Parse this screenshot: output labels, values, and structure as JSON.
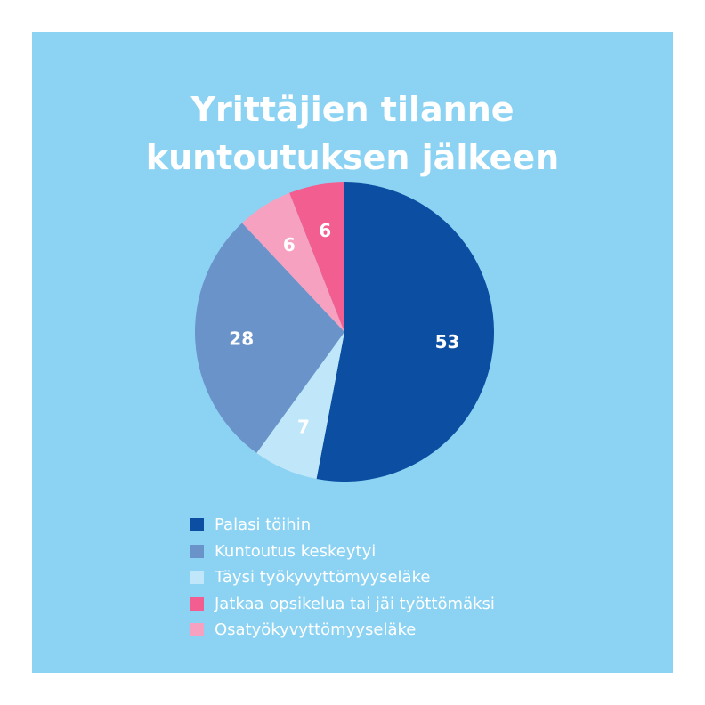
{
  "title_lines": [
    "Yrittäjien tilanne",
    "kuntoutuksen jälkeen"
  ],
  "chart_data": {
    "type": "pie",
    "title": "Yrittäjien tilanne kuntoutuksen jälkeen",
    "slices": [
      {
        "label": "Palasi töihin",
        "value": 53,
        "color": "#0b4ea2"
      },
      {
        "label": "Täysi työkyvyttömyyseläke",
        "value": 7,
        "color": "#c0e7f9"
      },
      {
        "label": "Kuntoutus keskeytyi",
        "value": 28,
        "color": "#6a93c9"
      },
      {
        "label": "Osatyökyvyttömyyseläke",
        "value": 6,
        "color": "#f7a1c0"
      },
      {
        "label": "Jatkaa opsikelua tai jäi työttömäksi",
        "value": 6,
        "color": "#f35e91"
      }
    ],
    "legend_order": [
      "Palasi töihin",
      "Kuntoutus keskeytyi",
      "Täysi työkyvyttömyyseläke",
      "Jatkaa opsikelua tai jäi työttömäksi",
      "Osatyökyvyttömyyseläke"
    ],
    "legend_position": "bottom"
  }
}
